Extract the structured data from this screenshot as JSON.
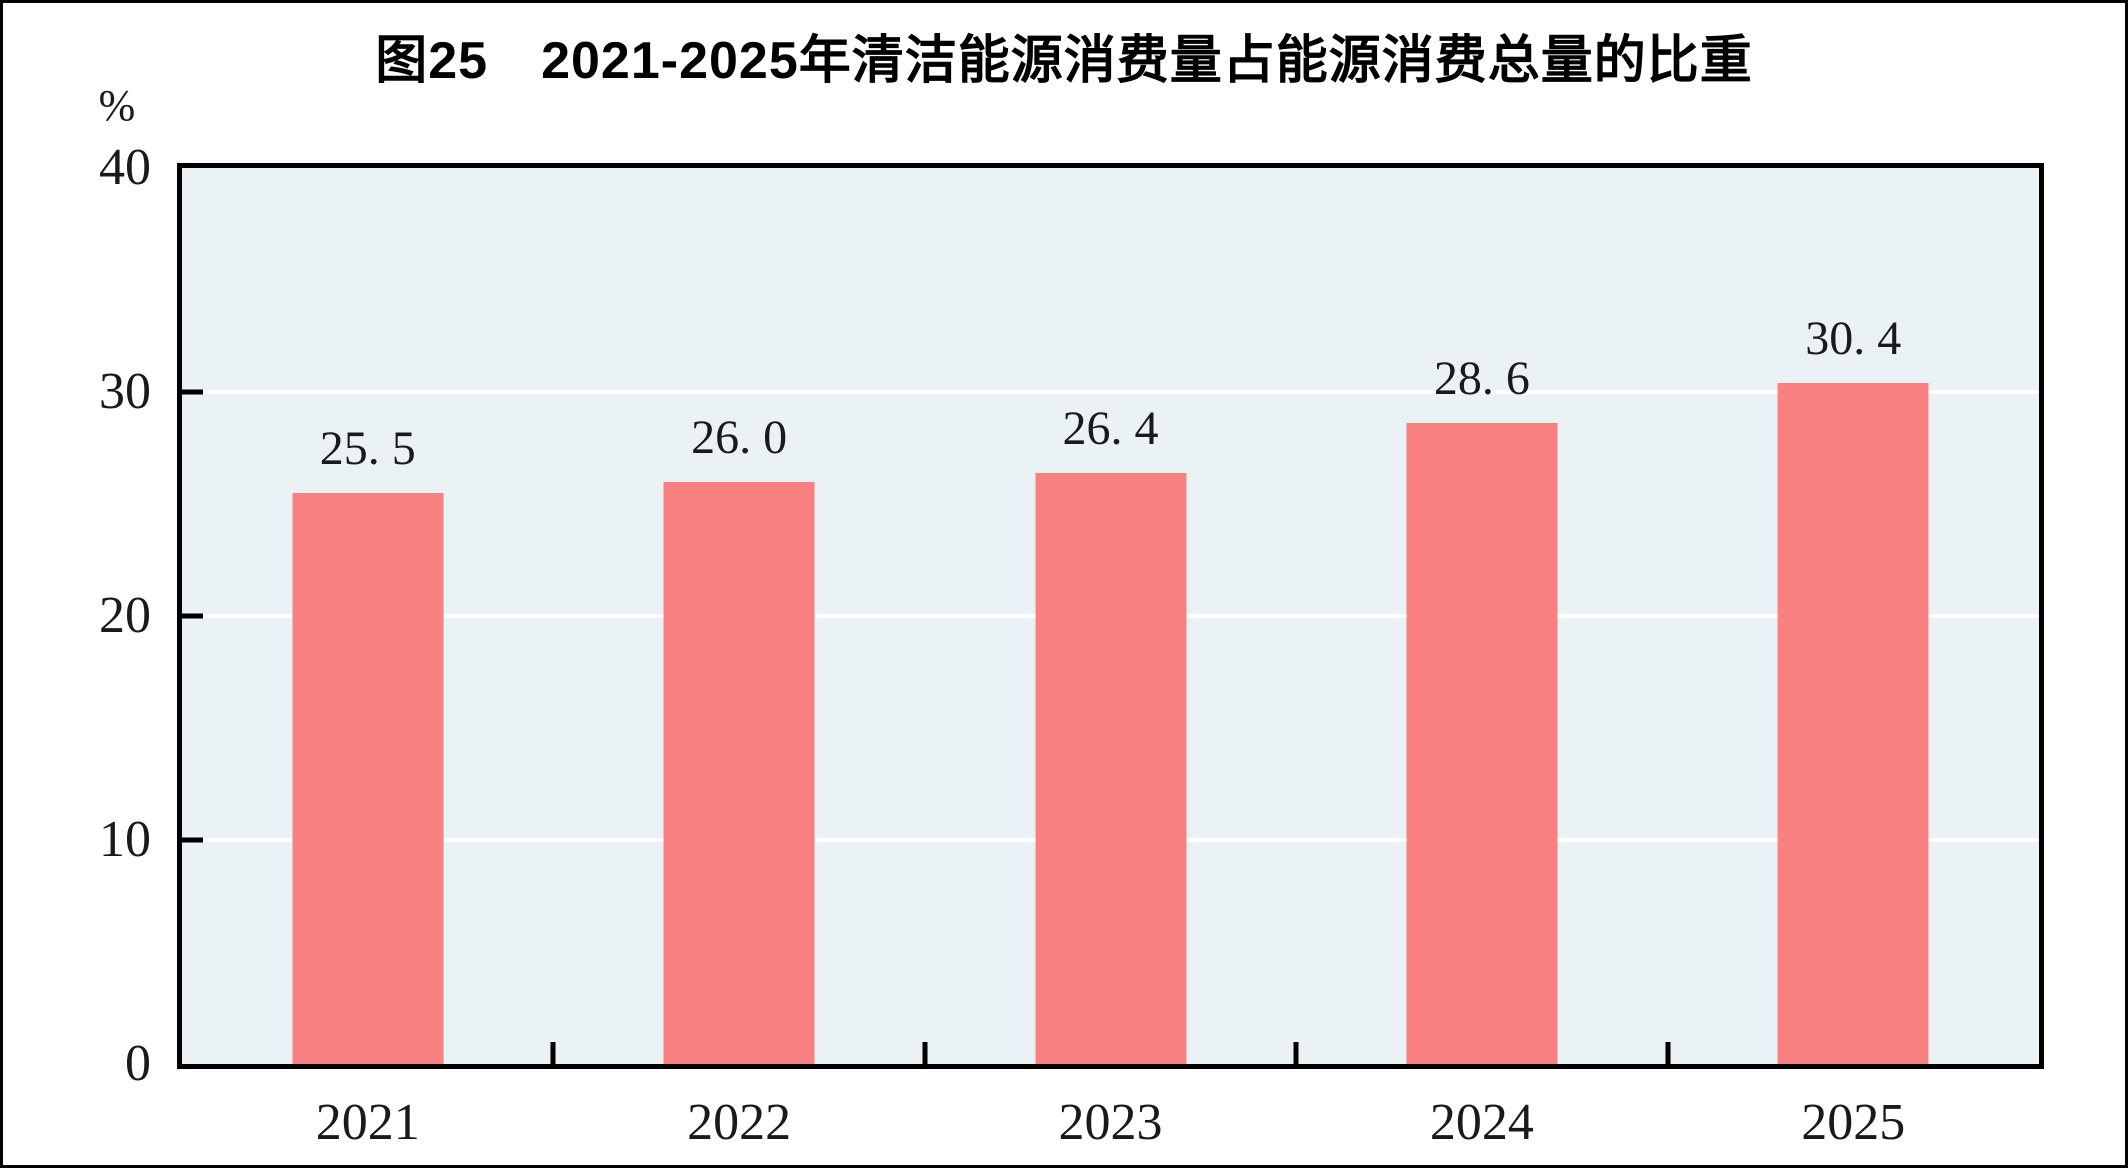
{
  "figure": {
    "title": "图25　2021-2025年清洁能源消费量占能源消费总量的比重",
    "unit_label": "%"
  },
  "chart_data": {
    "type": "bar",
    "title": "图25　2021-2025年清洁能源消费量占能源消费总量的比重",
    "categories": [
      "2021",
      "2022",
      "2023",
      "2024",
      "2025"
    ],
    "values": [
      25.5,
      26.0,
      26.4,
      28.6,
      30.4
    ],
    "value_labels": [
      "25. 5",
      "26. 0",
      "26. 4",
      "28. 6",
      "30. 4"
    ],
    "unit": "%",
    "ylabel": "%",
    "xlabel": "",
    "ylim": [
      0,
      40
    ],
    "yticks": [
      0,
      10,
      20,
      30,
      40
    ],
    "grid": "horizontal white gridlines at 10, 20, 30",
    "legend": "none",
    "colors": {
      "bar": "#F98080",
      "plot_background": "#EBF2F6",
      "gridline": "#FFFFFF",
      "axis": "#000000",
      "text": "#1A1A1A"
    }
  }
}
